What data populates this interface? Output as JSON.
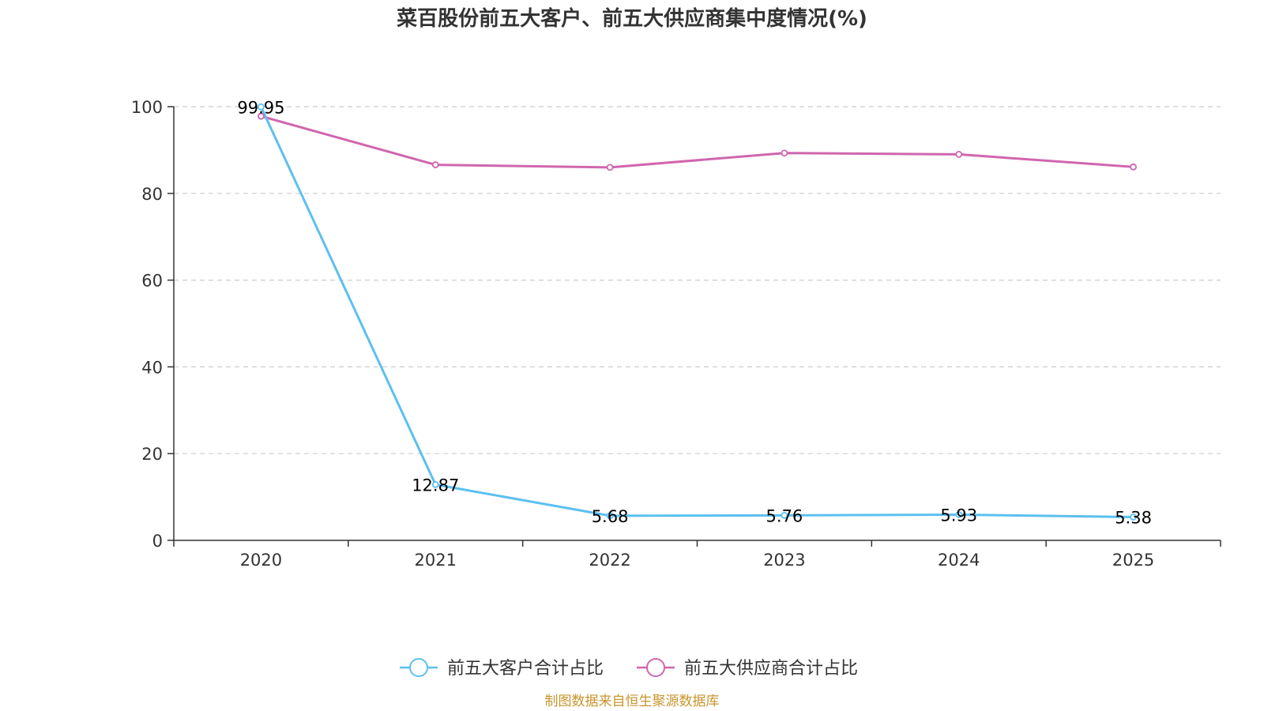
{
  "chart_data": {
    "type": "line",
    "title": "菜百股份前五大客户、前五大供应商集中度情况(%)",
    "x": [
      "2020",
      "2021",
      "2022",
      "2023",
      "2024",
      "2025"
    ],
    "ylim": [
      0,
      100
    ],
    "yticks": [
      "0",
      "20",
      "40",
      "60",
      "80",
      "100"
    ],
    "grid": true,
    "legend_position": "bottom-center",
    "series": [
      {
        "name": "前五大客户合计占比",
        "color": "#5bc0f0",
        "values": [
          99.95,
          12.87,
          5.68,
          5.76,
          5.93,
          5.38
        ],
        "labels": [
          "99.95",
          "12.87",
          "5.68",
          "5.76",
          "5.93",
          "5.38"
        ]
      },
      {
        "name": "前五大供应商合计占比",
        "color": "#d066ae",
        "values": [
          97.8,
          86.6,
          86.0,
          89.3,
          89.0,
          86.1
        ]
      }
    ],
    "source": "制图数据来自恒生聚源数据库",
    "source_color": "#c8952e"
  }
}
